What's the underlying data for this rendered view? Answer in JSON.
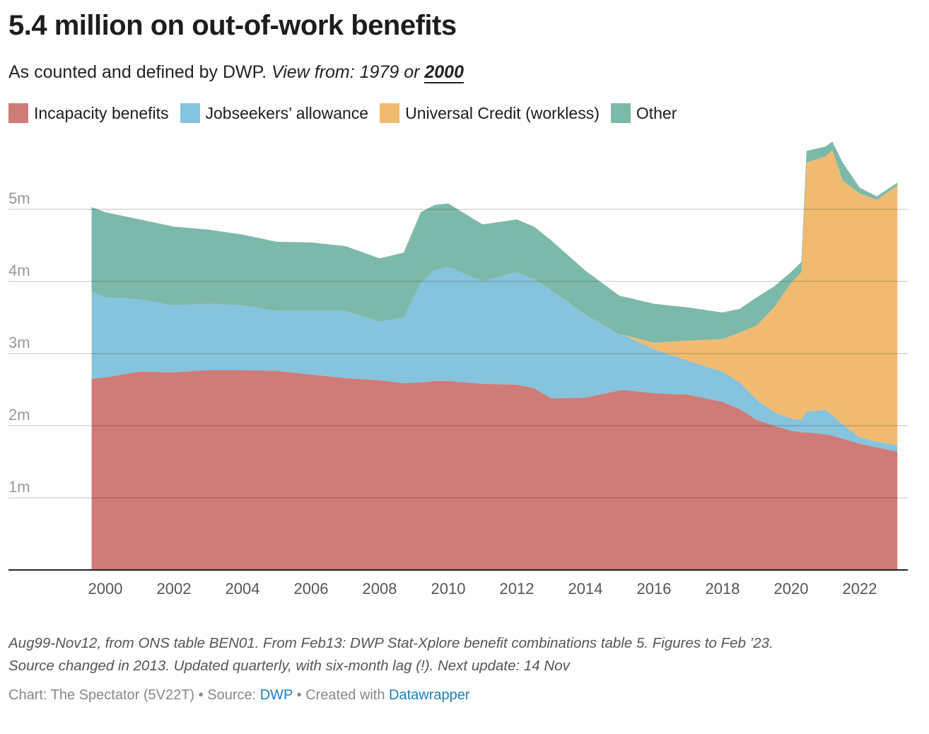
{
  "title": "5.4 million on out-of-work benefits",
  "subtitle": {
    "text": "As counted and defined by DWP.",
    "view_label": "View from:",
    "option_1979": "1979",
    "or": "or",
    "option_2000": "2000"
  },
  "notes": [
    "Aug99-Nov12, from ONS table BEN01. From Feb13: DWP Stat-Xplore benefit combinations table 5. Figures to Feb ’23.",
    "Source changed in 2013. Updated quarterly, with six-month lag (!). Next update: 14 Nov"
  ],
  "footer": {
    "chart_label": "Chart: The Spectator (5V22T)",
    "sep1": "•",
    "source_label": "Source:",
    "source_link": "DWP",
    "sep2": "•",
    "created_label": "Created with",
    "created_link": "Datawrapper"
  },
  "chart_data": {
    "type": "area",
    "stacked": true,
    "title": "5.4 million on out-of-work benefits",
    "xlabel": "",
    "ylabel": "",
    "ylim": [
      0,
      6
    ],
    "xlim": [
      1999.6,
      2023.1
    ],
    "y_ticks": [
      {
        "v": 1,
        "label": "1m"
      },
      {
        "v": 2,
        "label": "2m"
      },
      {
        "v": 3,
        "label": "3m"
      },
      {
        "v": 4,
        "label": "4m"
      },
      {
        "v": 5,
        "label": "5m"
      }
    ],
    "x_ticks": [
      2000,
      2002,
      2004,
      2006,
      2008,
      2010,
      2012,
      2014,
      2016,
      2018,
      2020,
      2022
    ],
    "grid": true,
    "legend_position": "top-left",
    "x": [
      1999.6,
      2000,
      2001,
      2002,
      2003,
      2004,
      2005,
      2006,
      2007,
      2008,
      2008.7,
      2009.2,
      2009.6,
      2010,
      2011,
      2012,
      2012.5,
      2013,
      2014,
      2015,
      2015.2,
      2016,
      2017,
      2018,
      2018.5,
      2019,
      2019.5,
      2020,
      2020.3,
      2020.45,
      2021,
      2021.2,
      2021.5,
      2022,
      2022.5,
      2023.1
    ],
    "series": [
      {
        "name": "Incapacity benefits",
        "color": "#cf7b77",
        "values": [
          2.65,
          2.67,
          2.75,
          2.74,
          2.77,
          2.77,
          2.76,
          2.71,
          2.66,
          2.63,
          2.59,
          2.6,
          2.62,
          2.62,
          2.58,
          2.57,
          2.52,
          2.38,
          2.39,
          2.49,
          2.49,
          2.45,
          2.43,
          2.33,
          2.23,
          2.08,
          2.0,
          1.93,
          1.91,
          1.91,
          1.88,
          1.86,
          1.82,
          1.75,
          1.7,
          1.64
        ]
      },
      {
        "name": "Jobseekers’ allowance",
        "color": "#86c3dc",
        "values": [
          1.21,
          1.11,
          1.0,
          0.93,
          0.92,
          0.9,
          0.83,
          0.88,
          0.93,
          0.81,
          0.91,
          1.38,
          1.54,
          1.58,
          1.42,
          1.56,
          1.51,
          1.5,
          1.15,
          0.77,
          0.75,
          0.61,
          0.47,
          0.42,
          0.37,
          0.28,
          0.19,
          0.17,
          0.17,
          0.29,
          0.34,
          0.29,
          0.2,
          0.09,
          0.08,
          0.09
        ]
      },
      {
        "name": "Universal Credit (workless)",
        "color": "#f0bb70",
        "values": [
          0,
          0,
          0,
          0,
          0,
          0,
          0,
          0,
          0,
          0,
          0,
          0,
          0,
          0,
          0,
          0,
          0,
          0,
          0,
          0,
          0.01,
          0.09,
          0.28,
          0.45,
          0.69,
          1.03,
          1.45,
          1.88,
          2.05,
          3.45,
          3.51,
          3.67,
          3.38,
          3.38,
          3.35,
          3.6
        ]
      },
      {
        "name": "Other",
        "color": "#7db9aa",
        "values": [
          1.17,
          1.18,
          1.11,
          1.09,
          1.03,
          0.98,
          0.96,
          0.95,
          0.9,
          0.88,
          0.9,
          0.98,
          0.9,
          0.88,
          0.79,
          0.73,
          0.73,
          0.69,
          0.61,
          0.54,
          0.53,
          0.54,
          0.46,
          0.37,
          0.33,
          0.39,
          0.29,
          0.15,
          0.14,
          0.16,
          0.14,
          0.12,
          0.25,
          0.08,
          0.05,
          0.04
        ]
      }
    ]
  }
}
